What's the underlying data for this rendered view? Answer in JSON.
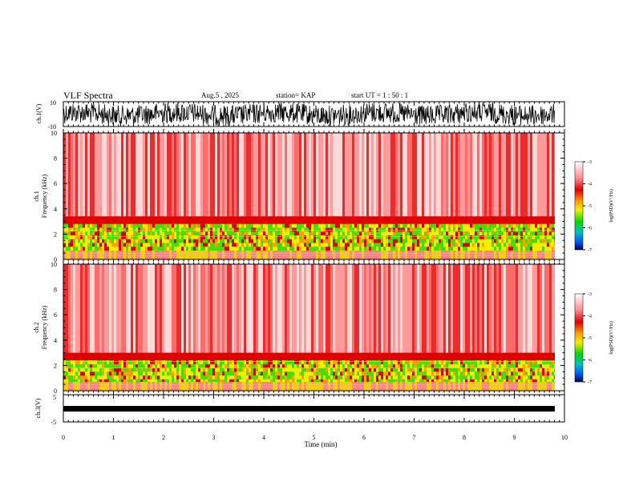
{
  "header": {
    "title": "VLF Spectra",
    "date": "Aug.5 , 2025",
    "station": "station= KAP",
    "start": "start UT = 1 : 50 : 1"
  },
  "chart_data": [
    {
      "type": "line",
      "name": "ch1-waveform",
      "ylabel": "ch.1(V)",
      "ylim": [
        -10,
        10
      ],
      "yticks": [
        "10",
        "-10"
      ],
      "xlim": [
        0,
        10
      ],
      "description_values": {
        "min": -10,
        "max": 10
      }
    },
    {
      "type": "heatmap",
      "name": "ch1-spectrogram",
      "ylabel_top": "ch.1",
      "ylabel": "Frequency (kHz)",
      "ylim": [
        0,
        10
      ],
      "yticks": [
        "0",
        "2",
        "4",
        "6",
        "8",
        "10"
      ],
      "xlim": [
        0,
        10
      ],
      "colorbar": {
        "label": "log(PSD)(V²/Hz)",
        "range": [
          -7,
          -3
        ],
        "ticks": [
          "-3",
          "-4",
          "-5",
          "-6",
          "-7"
        ]
      }
    },
    {
      "type": "heatmap",
      "name": "ch2-spectrogram",
      "ylabel_top": "ch.2",
      "ylabel": "Frequency (kHz)",
      "ylim": [
        0,
        10
      ],
      "yticks": [
        "0",
        "2",
        "4",
        "6",
        "8",
        "10"
      ],
      "xlim": [
        0,
        10
      ],
      "colorbar": {
        "label": "log(PSD)(V²/Hz)",
        "range": [
          -7,
          -3
        ],
        "ticks": [
          "-3",
          "-4",
          "-5",
          "-6",
          "-7"
        ]
      }
    },
    {
      "type": "line",
      "name": "ch3-waveform",
      "ylabel": "ch.3(V)",
      "ylim": [
        -5,
        5
      ],
      "yticks": [
        "5",
        "-5"
      ],
      "xlim": [
        0,
        10
      ],
      "xlabel": "Time (min)",
      "xticks": [
        "0",
        "1",
        "2",
        "3",
        "4",
        "5",
        "6",
        "7",
        "8",
        "9",
        "10"
      ]
    }
  ],
  "colors": {
    "spectrum_low": "#0000c0",
    "spectrum_mid": "#00d800",
    "spectrum_yellow": "#f0f000",
    "spectrum_high": "#e00000",
    "background": "#ffffff"
  }
}
